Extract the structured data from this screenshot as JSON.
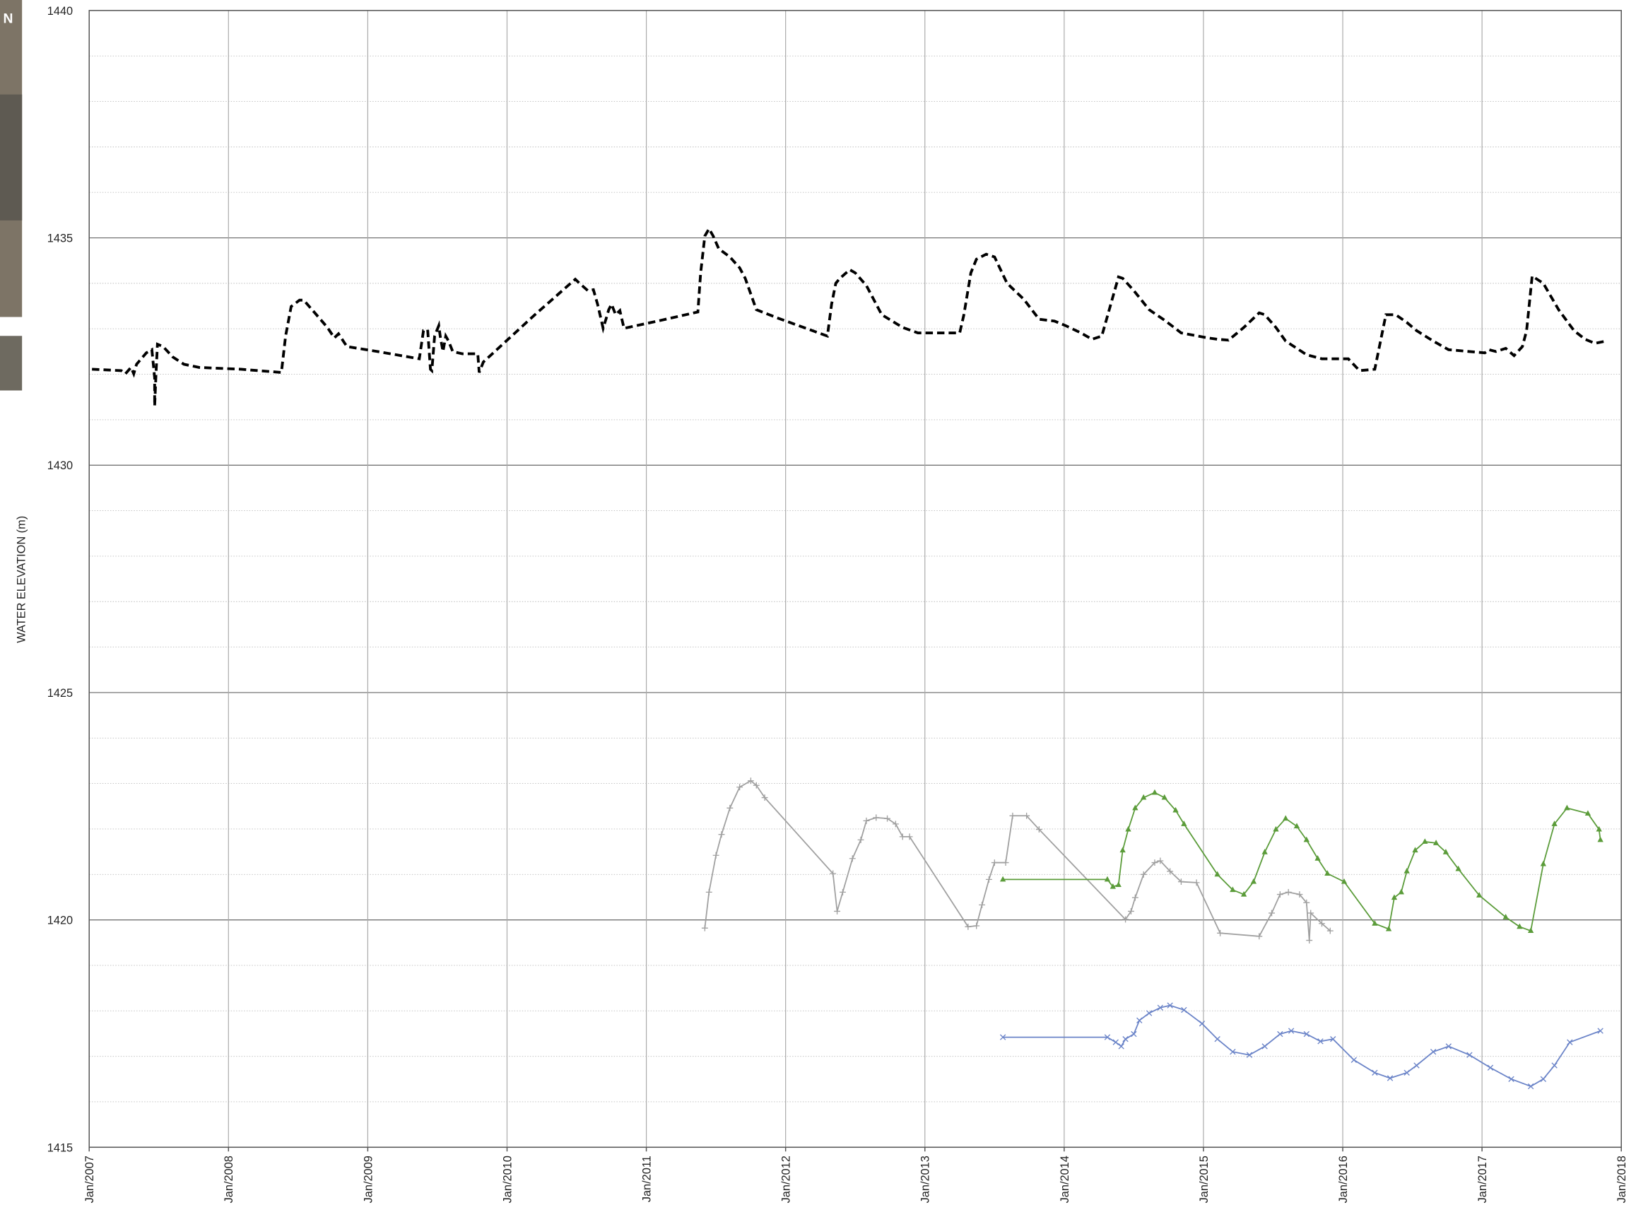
{
  "map_inset_label": "N",
  "chart_data": {
    "type": "line",
    "ylabel": "WATER ELEVATION (m)",
    "xlim": [
      2007,
      2018
    ],
    "xticks": [
      {
        "value": 2007,
        "label": "Jan/2007"
      },
      {
        "value": 2008,
        "label": "Jan/2008"
      },
      {
        "value": 2009,
        "label": "Jan/2009"
      },
      {
        "value": 2010,
        "label": "Jan/2010"
      },
      {
        "value": 2011,
        "label": "Jan/2011"
      },
      {
        "value": 2012,
        "label": "Jan/2012"
      },
      {
        "value": 2013,
        "label": "Jan/2013"
      },
      {
        "value": 2014,
        "label": "Jan/2014"
      },
      {
        "value": 2015,
        "label": "Jan/2015"
      },
      {
        "value": 2016,
        "label": "Jan/2016"
      },
      {
        "value": 2017,
        "label": "Jan/2017"
      },
      {
        "value": 2018,
        "label": "Jan/2018"
      }
    ],
    "ylim": [
      1415,
      1440
    ],
    "yticks": [
      1415,
      1420,
      1425,
      1430,
      1435,
      1440
    ],
    "minor_yticks": [
      1416,
      1417,
      1418,
      1419,
      1421,
      1422,
      1423,
      1424,
      1426,
      1427,
      1428,
      1429,
      1431,
      1432,
      1433,
      1434,
      1436,
      1437,
      1438,
      1439
    ],
    "grid": true,
    "series": [
      {
        "color": "#000000",
        "dash": true,
        "marker": "none",
        "x": [
          2007.02,
          2007.23,
          2007.26,
          2007.3,
          2007.32,
          2007.34,
          2007.41,
          2007.45,
          2007.47,
          2007.47,
          2007.48,
          2007.49,
          2007.53,
          2007.6,
          2007.68,
          2007.79,
          2008.09,
          2008.38,
          2008.41,
          2008.45,
          2008.51,
          2008.54,
          2008.62,
          2008.71,
          2008.76,
          2008.79,
          2008.85,
          2009.07,
          2009.37,
          2009.4,
          2009.43,
          2009.45,
          2009.46,
          2009.48,
          2009.51,
          2009.52,
          2009.54,
          2009.56,
          2009.58,
          2009.61,
          2009.68,
          2009.79,
          2009.8,
          2009.83,
          2010.2,
          2010.49,
          2010.52,
          2010.58,
          2010.62,
          2010.65,
          2010.69,
          2010.72,
          2010.73,
          2010.75,
          2010.78,
          2010.81,
          2010.84,
          2011.11,
          2011.37,
          2011.39,
          2011.42,
          2011.45,
          2011.48,
          2011.52,
          2011.6,
          2011.67,
          2011.71,
          2011.79,
          2011.94,
          2012.3,
          2012.33,
          2012.36,
          2012.39,
          2012.46,
          2012.5,
          2012.58,
          2012.69,
          2012.84,
          2012.95,
          2013.25,
          2013.28,
          2013.33,
          2013.37,
          2013.44,
          2013.5,
          2013.59,
          2013.71,
          2013.82,
          2013.93,
          2014.01,
          2014.12,
          2014.2,
          2014.27,
          2014.39,
          2014.42,
          2014.5,
          2014.61,
          2014.72,
          2014.84,
          2015.03,
          2015.1,
          2015.18,
          2015.29,
          2015.4,
          2015.44,
          2015.52,
          2015.59,
          2015.74,
          2015.85,
          2016.04,
          2016.12,
          2016.23,
          2016.31,
          2016.38,
          2016.46,
          2016.53,
          2016.65,
          2016.76,
          2016.91,
          2017.02,
          2017.05,
          2017.1,
          2017.17,
          2017.23,
          2017.29,
          2017.32,
          2017.36,
          2017.44,
          2017.55,
          2017.66,
          2017.74,
          2017.81,
          2017.89
        ],
        "values": [
          1432.11,
          1432.08,
          1432.01,
          1432.15,
          1432.01,
          1432.22,
          1432.47,
          1432.54,
          1431.92,
          1431.3,
          1432.04,
          1432.66,
          1432.61,
          1432.38,
          1432.22,
          1432.15,
          1432.11,
          1432.04,
          1432.84,
          1433.49,
          1433.63,
          1433.63,
          1433.35,
          1433.03,
          1432.8,
          1432.89,
          1432.61,
          1432.5,
          1432.34,
          1432.96,
          1432.98,
          1432.11,
          1432.08,
          1432.84,
          1433.07,
          1432.84,
          1432.5,
          1432.84,
          1432.73,
          1432.5,
          1432.45,
          1432.45,
          1432.04,
          1432.27,
          1433.31,
          1434.09,
          1434.0,
          1433.84,
          1433.86,
          1433.54,
          1433.01,
          1433.31,
          1433.42,
          1433.54,
          1433.31,
          1433.4,
          1433.01,
          1433.19,
          1433.37,
          1434.23,
          1435.04,
          1435.2,
          1435.04,
          1434.76,
          1434.58,
          1434.34,
          1434.11,
          1433.42,
          1433.24,
          1432.84,
          1433.54,
          1434.0,
          1434.11,
          1434.3,
          1434.23,
          1433.95,
          1433.31,
          1433.03,
          1432.91,
          1432.91,
          1433.31,
          1434.23,
          1434.53,
          1434.64,
          1434.58,
          1434.0,
          1433.65,
          1433.21,
          1433.17,
          1433.07,
          1432.91,
          1432.77,
          1432.84,
          1434.14,
          1434.11,
          1433.84,
          1433.42,
          1433.19,
          1432.91,
          1432.8,
          1432.77,
          1432.75,
          1433.03,
          1433.35,
          1433.31,
          1433.03,
          1432.73,
          1432.43,
          1432.34,
          1432.34,
          1432.08,
          1432.11,
          1433.31,
          1433.31,
          1433.14,
          1432.96,
          1432.73,
          1432.54,
          1432.5,
          1432.47,
          1432.54,
          1432.5,
          1432.57,
          1432.41,
          1432.61,
          1432.96,
          1434.16,
          1434.0,
          1433.42,
          1432.96,
          1432.77,
          1432.68,
          1432.73
        ]
      },
      {
        "color": "#a0a0a0",
        "dash": false,
        "marker": "plus",
        "x": [
          2011.42,
          2011.45,
          2011.5,
          2011.54,
          2011.6,
          2011.67,
          2011.75,
          2011.79,
          2011.85,
          2012.34,
          2012.37,
          2012.41,
          2012.48,
          2012.54,
          2012.58,
          2012.65,
          2012.73,
          2012.79,
          2012.84,
          2012.89,
          2013.31,
          2013.37,
          2013.41,
          2013.46,
          2013.5,
          2013.58,
          2013.63,
          2013.73,
          2013.82,
          2014.44,
          2014.48,
          2014.51,
          2014.57,
          2014.65,
          2014.69,
          2014.76,
          2014.84,
          2014.95,
          2015.12,
          2015.4,
          2015.49,
          2015.55,
          2015.61,
          2015.69,
          2015.74,
          2015.76,
          2015.77,
          2015.85,
          2015.91
        ],
        "values": [
          1419.82,
          1420.61,
          1421.42,
          1421.88,
          1422.46,
          1422.92,
          1423.06,
          1422.96,
          1422.69,
          1421.02,
          1420.19,
          1420.61,
          1421.35,
          1421.76,
          1422.18,
          1422.25,
          1422.23,
          1422.11,
          1421.83,
          1421.83,
          1419.85,
          1419.87,
          1420.33,
          1420.89,
          1421.26,
          1421.26,
          1422.29,
          1422.29,
          1421.99,
          1420.01,
          1420.19,
          1420.49,
          1421.0,
          1421.26,
          1421.3,
          1421.07,
          1420.84,
          1420.82,
          1419.71,
          1419.64,
          1420.15,
          1420.56,
          1420.61,
          1420.56,
          1420.38,
          1419.55,
          1420.15,
          1419.92,
          1419.76
        ]
      },
      {
        "color": "#5b9c3a",
        "dash": false,
        "marker": "triangle",
        "x": [
          2013.56,
          2014.31,
          2014.35,
          2014.39,
          2014.42,
          2014.46,
          2014.51,
          2014.57,
          2014.65,
          2014.72,
          2014.8,
          2014.86,
          2015.1,
          2015.21,
          2015.29,
          2015.36,
          2015.44,
          2015.52,
          2015.59,
          2015.67,
          2015.74,
          2015.82,
          2015.89,
          2016.01,
          2016.23,
          2016.33,
          2016.37,
          2016.42,
          2016.46,
          2016.52,
          2016.59,
          2016.67,
          2016.74,
          2016.83,
          2016.98,
          2017.17,
          2017.27,
          2017.35,
          2017.44,
          2017.52,
          2017.61,
          2017.76,
          2017.84,
          2017.85
        ],
        "values": [
          1420.89,
          1420.89,
          1420.73,
          1420.77,
          1421.53,
          1421.99,
          1422.46,
          1422.69,
          1422.8,
          1422.69,
          1422.41,
          1422.11,
          1421.0,
          1420.66,
          1420.56,
          1420.84,
          1421.49,
          1421.99,
          1422.23,
          1422.06,
          1421.76,
          1421.35,
          1421.02,
          1420.84,
          1419.92,
          1419.8,
          1420.49,
          1420.61,
          1421.07,
          1421.53,
          1421.72,
          1421.69,
          1421.49,
          1421.12,
          1420.54,
          1420.06,
          1419.85,
          1419.76,
          1421.23,
          1422.11,
          1422.46,
          1422.34,
          1421.99,
          1421.76
        ]
      },
      {
        "color": "#6b84c8",
        "dash": false,
        "marker": "cross",
        "x": [
          2013.56,
          2014.31,
          2014.37,
          2014.41,
          2014.44,
          2014.5,
          2014.54,
          2014.61,
          2014.69,
          2014.76,
          2014.86,
          2014.99,
          2015.1,
          2015.21,
          2015.33,
          2015.44,
          2015.55,
          2015.63,
          2015.74,
          2015.84,
          2015.93,
          2016.08,
          2016.23,
          2016.34,
          2016.46,
          2016.53,
          2016.65,
          2016.76,
          2016.91,
          2017.06,
          2017.21,
          2017.35,
          2017.44,
          2017.52,
          2017.63,
          2017.85
        ],
        "values": [
          1417.42,
          1417.42,
          1417.31,
          1417.22,
          1417.38,
          1417.49,
          1417.79,
          1417.95,
          1418.07,
          1418.12,
          1418.02,
          1417.72,
          1417.38,
          1417.1,
          1417.03,
          1417.22,
          1417.49,
          1417.56,
          1417.49,
          1417.33,
          1417.38,
          1416.92,
          1416.64,
          1416.52,
          1416.64,
          1416.8,
          1417.1,
          1417.22,
          1417.03,
          1416.75,
          1416.5,
          1416.34,
          1416.5,
          1416.8,
          1417.31,
          1417.56
        ]
      }
    ]
  }
}
